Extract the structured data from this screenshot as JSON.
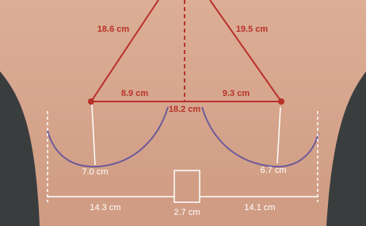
{
  "measurements": {
    "left_notch_to_nipple": "18.6 cm",
    "right_notch_to_nipple": "19.5 cm",
    "left_nipple_to_midline": "8.9 cm",
    "right_nipple_to_midline": "9.3 cm",
    "internipple": "18.2 cm",
    "left_nipple_to_fold": "7.0 cm",
    "right_nipple_to_fold": "6.7 cm",
    "left_base_width": "14.3 cm",
    "intermammary": "2.7 cm",
    "right_base_width": "14.1 cm"
  }
}
